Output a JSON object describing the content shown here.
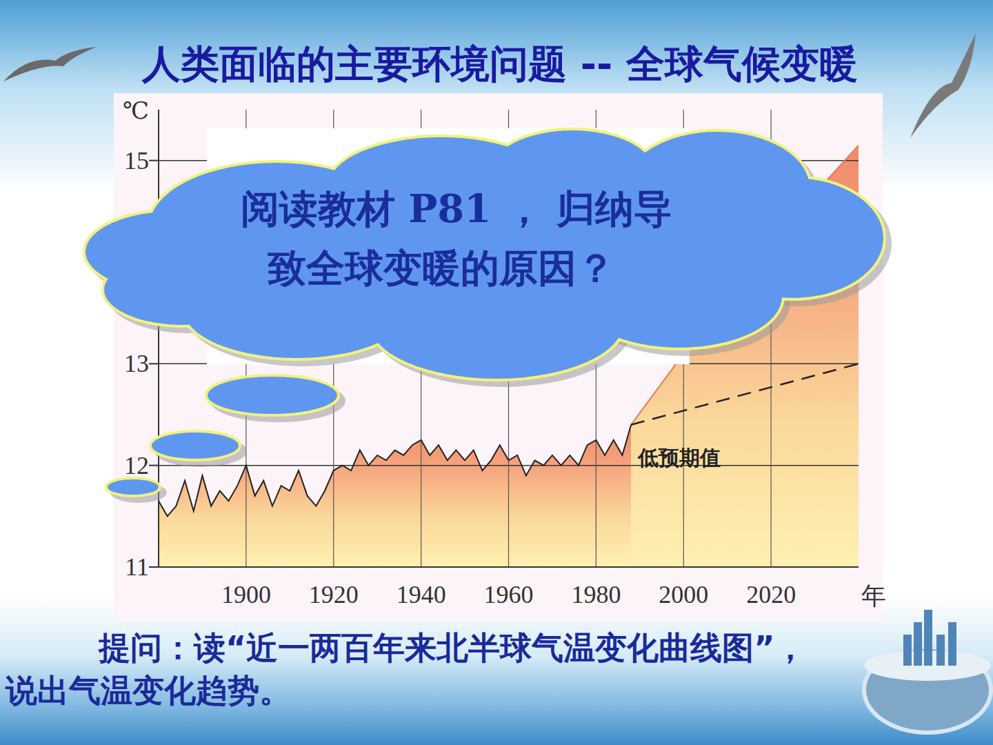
{
  "chart_data": {
    "type": "line",
    "title": "人类面临的主要环境问题 -- 全球气候变暖",
    "y_label": "℃",
    "x_label": "年",
    "xlim": [
      1880,
      2040
    ],
    "xticks": [
      1900,
      1920,
      1940,
      1960,
      1980,
      2000,
      2020
    ],
    "ylim": [
      11,
      15.5
    ],
    "yticks": [
      11,
      12,
      13,
      15
    ],
    "grid": true,
    "series": [
      {
        "color": "#222222",
        "line_style": "solid",
        "x": [
          1880,
          1882,
          1884,
          1886,
          1888,
          1890,
          1892,
          1894,
          1896,
          1898,
          1900,
          1902,
          1904,
          1906,
          1908,
          1910,
          1912,
          1914,
          1916,
          1918,
          1920,
          1922,
          1924,
          1926,
          1928,
          1930,
          1932,
          1934,
          1936,
          1938,
          1940,
          1942,
          1944,
          1946,
          1948,
          1950,
          1952,
          1954,
          1956,
          1958,
          1960,
          1962,
          1964,
          1966,
          1968,
          1970,
          1972,
          1974,
          1976,
          1978,
          1980,
          1982,
          1984,
          1986,
          1988
        ],
        "values": [
          11.65,
          11.5,
          11.6,
          11.85,
          11.55,
          11.9,
          11.6,
          11.75,
          11.65,
          11.8,
          12.0,
          11.7,
          11.85,
          11.6,
          11.8,
          11.75,
          11.95,
          11.7,
          11.6,
          11.75,
          11.95,
          12.0,
          11.95,
          12.15,
          12.0,
          12.1,
          12.05,
          12.15,
          12.1,
          12.2,
          12.25,
          12.1,
          12.2,
          12.05,
          12.15,
          12.05,
          12.15,
          11.95,
          12.05,
          12.2,
          12.05,
          12.1,
          11.9,
          12.05,
          12.0,
          12.1,
          12.0,
          12.1,
          12.0,
          12.2,
          12.25,
          12.1,
          12.25,
          12.1,
          12.4
        ]
      },
      {
        "color": "#e07a58",
        "line_style": "solid",
        "x": [
          1988,
          2000,
          2020,
          2040
        ],
        "values": [
          12.4,
          13.1,
          14.2,
          15.15
        ]
      },
      {
        "name": "低预期值",
        "color": "#222222",
        "line_style": "dashed",
        "x": [
          1988,
          2040
        ],
        "values": [
          12.4,
          13.0
        ]
      }
    ]
  },
  "callout": {
    "lines": [
      "阅读教材 P81 ， 归纳导",
      "致全球变暖的原因？"
    ]
  },
  "question": "提问：读“近一两百年来北半球气温变化曲线图”，说出气温变化趋势。"
}
